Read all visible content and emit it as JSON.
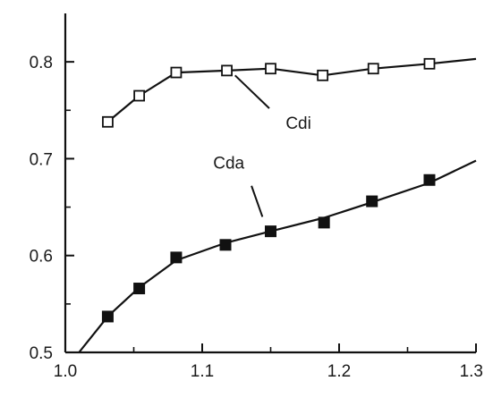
{
  "chart_data": {
    "type": "line",
    "title": "",
    "xlabel": "",
    "ylabel": "",
    "xlim": [
      1.0,
      1.3
    ],
    "ylim": [
      0.5,
      0.85
    ],
    "x_ticks": [
      1.0,
      1.1,
      1.2,
      1.3
    ],
    "x_tick_labels": [
      "1.0",
      "1.1",
      "1.2",
      "1.3"
    ],
    "y_ticks": [
      0.5,
      0.6,
      0.7,
      0.8
    ],
    "y_tick_labels": [
      "0.5",
      "0.6",
      "0.7",
      "0.8"
    ],
    "grid": false,
    "legend": "none",
    "series": [
      {
        "name": "Cdi",
        "marker": "open-square",
        "points": [
          [
            1.031,
            0.738
          ],
          [
            1.054,
            0.765
          ],
          [
            1.081,
            0.789
          ],
          [
            1.118,
            0.791
          ],
          [
            1.15,
            0.793
          ],
          [
            1.188,
            0.786
          ],
          [
            1.225,
            0.793
          ],
          [
            1.266,
            0.798
          ]
        ],
        "curve": [
          [
            1.031,
            0.738
          ],
          [
            1.054,
            0.765
          ],
          [
            1.081,
            0.789
          ],
          [
            1.118,
            0.791
          ],
          [
            1.15,
            0.793
          ],
          [
            1.188,
            0.786
          ],
          [
            1.225,
            0.793
          ],
          [
            1.266,
            0.798
          ],
          [
            1.3,
            0.803
          ]
        ]
      },
      {
        "name": "Cda",
        "marker": "filled-square",
        "points": [
          [
            1.031,
            0.537
          ],
          [
            1.054,
            0.566
          ],
          [
            1.081,
            0.598
          ],
          [
            1.117,
            0.611
          ],
          [
            1.15,
            0.625
          ],
          [
            1.189,
            0.634
          ],
          [
            1.224,
            0.656
          ],
          [
            1.266,
            0.678
          ]
        ],
        "curve": [
          [
            1.01,
            0.5
          ],
          [
            1.031,
            0.537
          ],
          [
            1.054,
            0.567
          ],
          [
            1.081,
            0.595
          ],
          [
            1.117,
            0.613
          ],
          [
            1.15,
            0.625
          ],
          [
            1.189,
            0.639
          ],
          [
            1.224,
            0.655
          ],
          [
            1.266,
            0.675
          ],
          [
            1.3,
            0.698
          ]
        ]
      }
    ],
    "annotations": [
      {
        "text": "Cdi",
        "series": "Cdi",
        "leader_from": [
          1.124,
          0.786
        ],
        "leader_to": [
          1.149,
          0.752
        ],
        "text_at": [
          1.161,
          0.731
        ]
      },
      {
        "text": "Cda",
        "series": "Cda",
        "leader_from": [
          1.136,
          0.672
        ],
        "leader_to": [
          1.144,
          0.64
        ],
        "text_at": [
          1.108,
          0.69
        ]
      }
    ]
  }
}
